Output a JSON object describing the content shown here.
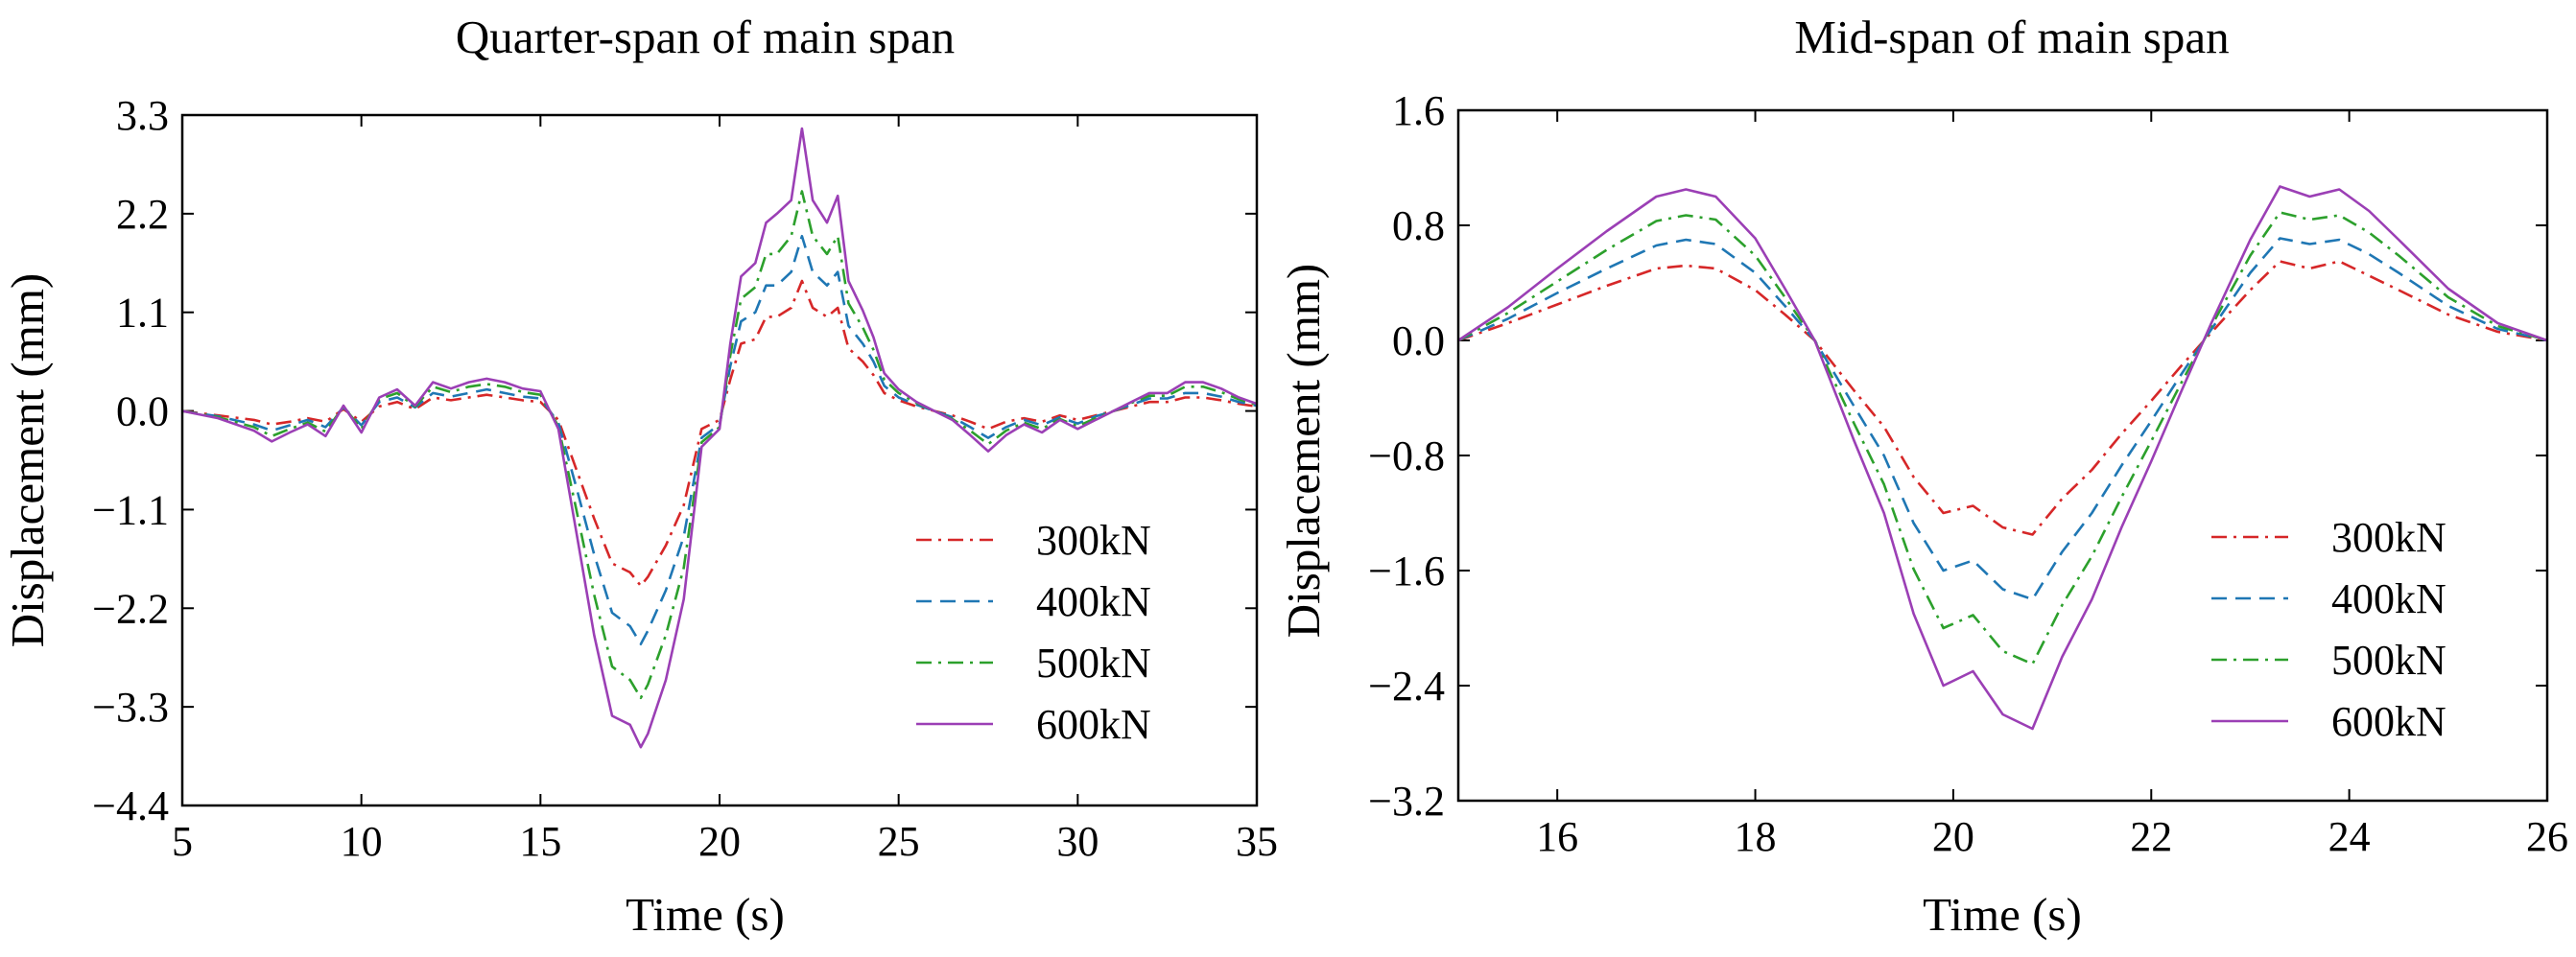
{
  "chart_data": [
    {
      "type": "line",
      "title": "Quarter-span of main span",
      "xlabel": "Time (s)",
      "ylabel": "Displacement (mm)",
      "xlim": [
        5,
        35
      ],
      "ylim": [
        -4.4,
        3.3
      ],
      "xticks": [
        5,
        10,
        15,
        20,
        25,
        30,
        35
      ],
      "xtick_labels": [
        "5",
        "10",
        "15",
        "20",
        "25",
        "30",
        "35"
      ],
      "yticks": [
        3.3,
        2.2,
        1.1,
        0.0,
        -1.1,
        -2.2,
        -3.3,
        -4.4
      ],
      "ytick_labels": [
        "3.3",
        "2.2",
        "1.1",
        "0.0",
        "−1.1",
        "−2.2",
        "−3.3",
        "−4.4"
      ],
      "legend_position": "lower-right",
      "grid": false,
      "series": [
        {
          "name": "300kN",
          "color": "#d62728",
          "dash": "dashdot",
          "x": [
            5,
            6,
            7,
            7.5,
            8,
            8.5,
            9,
            9.5,
            10,
            10.5,
            11,
            11.5,
            12,
            12.5,
            13,
            13.5,
            14,
            14.5,
            15,
            15.5,
            16,
            16.5,
            17,
            17.5,
            17.8,
            18,
            18.5,
            19,
            19.5,
            20,
            20.3,
            20.6,
            21,
            21.3,
            21.6,
            22,
            22.3,
            22.6,
            23,
            23.3,
            23.6,
            24,
            24.3,
            24.6,
            25,
            25.5,
            26,
            26.5,
            27,
            27.5,
            28,
            28.5,
            29,
            29.5,
            30,
            30.5,
            31,
            31.5,
            32,
            32.5,
            33,
            33.5,
            34,
            34.5,
            35
          ],
          "y": [
            0,
            -0.05,
            -0.1,
            -0.15,
            -0.12,
            -0.08,
            -0.12,
            0.02,
            -0.12,
            0.05,
            0.1,
            0.02,
            0.15,
            0.12,
            0.15,
            0.18,
            0.15,
            0.12,
            0.1,
            -0.1,
            -0.65,
            -1.2,
            -1.7,
            -1.8,
            -1.95,
            -1.85,
            -1.5,
            -1.05,
            -0.2,
            -0.1,
            0.35,
            0.75,
            0.8,
            1.05,
            1.05,
            1.15,
            1.45,
            1.15,
            1.05,
            1.15,
            0.7,
            0.55,
            0.4,
            0.2,
            0.12,
            0.05,
            0,
            -0.05,
            -0.12,
            -0.2,
            -0.12,
            -0.08,
            -0.12,
            -0.05,
            -0.1,
            -0.05,
            0,
            0.05,
            0.1,
            0.1,
            0.15,
            0.15,
            0.12,
            0.08,
            0.05
          ]
        },
        {
          "name": "400kN",
          "color": "#1f77b4",
          "dash": "dashed",
          "x": [
            5,
            6,
            7,
            7.5,
            8,
            8.5,
            9,
            9.5,
            10,
            10.5,
            11,
            11.5,
            12,
            12.5,
            13,
            13.5,
            14,
            14.5,
            15,
            15.5,
            16,
            16.5,
            17,
            17.5,
            17.8,
            18,
            18.5,
            19,
            19.5,
            20,
            20.3,
            20.6,
            21,
            21.3,
            21.6,
            22,
            22.3,
            22.6,
            23,
            23.3,
            23.6,
            24,
            24.3,
            24.6,
            25,
            25.5,
            26,
            26.5,
            27,
            27.5,
            28,
            28.5,
            29,
            29.5,
            30,
            30.5,
            31,
            31.5,
            32,
            32.5,
            33,
            33.5,
            34,
            34.5,
            35
          ],
          "y": [
            0,
            -0.06,
            -0.15,
            -0.22,
            -0.16,
            -0.1,
            -0.18,
            0.04,
            -0.16,
            0.1,
            0.15,
            0.04,
            0.2,
            0.16,
            0.2,
            0.24,
            0.2,
            0.16,
            0.14,
            -0.13,
            -0.85,
            -1.6,
            -2.25,
            -2.4,
            -2.6,
            -2.45,
            -2,
            -1.4,
            -0.3,
            -0.15,
            0.5,
            1.0,
            1.1,
            1.4,
            1.4,
            1.55,
            1.95,
            1.55,
            1.4,
            1.55,
            0.95,
            0.75,
            0.55,
            0.28,
            0.15,
            0.07,
            0,
            -0.07,
            -0.18,
            -0.3,
            -0.18,
            -0.1,
            -0.16,
            -0.07,
            -0.14,
            -0.06,
            0,
            0.07,
            0.14,
            0.14,
            0.2,
            0.2,
            0.16,
            0.1,
            0.06
          ]
        },
        {
          "name": "500kN",
          "color": "#2ca02c",
          "dash": "dashdot",
          "x": [
            5,
            6,
            7,
            7.5,
            8,
            8.5,
            9,
            9.5,
            10,
            10.5,
            11,
            11.5,
            12,
            12.5,
            13,
            13.5,
            14,
            14.5,
            15,
            15.5,
            16,
            16.5,
            17,
            17.5,
            17.8,
            18,
            18.5,
            19,
            19.5,
            20,
            20.3,
            20.6,
            21,
            21.3,
            21.6,
            22,
            22.3,
            22.6,
            23,
            23.3,
            23.6,
            24,
            24.3,
            24.6,
            25,
            25.5,
            26,
            26.5,
            27,
            27.5,
            28,
            28.5,
            29,
            29.5,
            30,
            30.5,
            31,
            31.5,
            32,
            32.5,
            33,
            33.5,
            34,
            34.5,
            35
          ],
          "y": [
            0,
            -0.07,
            -0.18,
            -0.28,
            -0.2,
            -0.13,
            -0.23,
            0.05,
            -0.2,
            0.13,
            0.2,
            0.05,
            0.27,
            0.21,
            0.27,
            0.3,
            0.27,
            0.21,
            0.18,
            -0.17,
            -1.1,
            -2.05,
            -2.85,
            -3.0,
            -3.2,
            -3.05,
            -2.5,
            -1.75,
            -0.35,
            -0.18,
            0.62,
            1.25,
            1.38,
            1.75,
            1.75,
            1.95,
            2.45,
            1.95,
            1.75,
            1.95,
            1.2,
            0.93,
            0.68,
            0.35,
            0.2,
            0.09,
            0,
            -0.09,
            -0.22,
            -0.37,
            -0.22,
            -0.13,
            -0.2,
            -0.09,
            -0.17,
            -0.08,
            0,
            0.09,
            0.17,
            0.17,
            0.27,
            0.27,
            0.21,
            0.13,
            0.07
          ]
        },
        {
          "name": "600kN",
          "color": "#9b3fb5",
          "dash": "solid",
          "x": [
            5,
            6,
            7,
            7.5,
            8,
            8.5,
            9,
            9.5,
            10,
            10.5,
            11,
            11.5,
            12,
            12.5,
            13,
            13.5,
            14,
            14.5,
            15,
            15.5,
            16,
            16.5,
            17,
            17.5,
            17.8,
            18,
            18.5,
            19,
            19.5,
            20,
            20.3,
            20.6,
            21,
            21.3,
            21.6,
            22,
            22.3,
            22.6,
            23,
            23.3,
            23.6,
            24,
            24.3,
            24.6,
            25,
            25.5,
            26,
            26.5,
            27,
            27.5,
            28,
            28.5,
            29,
            29.5,
            30,
            30.5,
            31,
            31.5,
            32,
            32.5,
            33,
            33.5,
            34,
            34.5,
            35
          ],
          "y": [
            0,
            -0.08,
            -0.22,
            -0.34,
            -0.24,
            -0.15,
            -0.28,
            0.06,
            -0.24,
            0.15,
            0.24,
            0.06,
            0.32,
            0.25,
            0.32,
            0.36,
            0.32,
            0.25,
            0.22,
            -0.2,
            -1.35,
            -2.5,
            -3.4,
            -3.5,
            -3.75,
            -3.6,
            -3.0,
            -2.1,
            -0.4,
            -0.2,
            0.75,
            1.5,
            1.65,
            2.1,
            2.2,
            2.35,
            3.15,
            2.35,
            2.1,
            2.4,
            1.45,
            1.12,
            0.82,
            0.42,
            0.24,
            0.1,
            0,
            -0.1,
            -0.27,
            -0.45,
            -0.27,
            -0.15,
            -0.24,
            -0.1,
            -0.2,
            -0.1,
            0,
            0.1,
            0.2,
            0.2,
            0.32,
            0.32,
            0.25,
            0.15,
            0.08
          ]
        }
      ]
    },
    {
      "type": "line",
      "title": "Mid-span of main span",
      "xlabel": "Time (s)",
      "ylabel": "Displacement (mm)",
      "xlim": [
        15,
        26
      ],
      "ylim": [
        -3.2,
        1.6
      ],
      "xticks": [
        16,
        18,
        20,
        22,
        24,
        26
      ],
      "xtick_labels": [
        "16",
        "18",
        "20",
        "22",
        "24",
        "26"
      ],
      "yticks": [
        1.6,
        0.8,
        0.0,
        -0.8,
        -1.6,
        -2.4,
        -3.2
      ],
      "ytick_labels": [
        "1.6",
        "0.8",
        "0.0",
        "−0.8",
        "−1.6",
        "−2.4",
        "−3.2"
      ],
      "legend_position": "lower-right",
      "grid": false,
      "series": [
        {
          "name": "300kN",
          "color": "#d62728",
          "dash": "dashdot",
          "x": [
            15,
            15.5,
            16,
            16.5,
            17,
            17.3,
            17.6,
            18,
            18.3,
            18.6,
            19,
            19.3,
            19.6,
            19.9,
            20.2,
            20.5,
            20.8,
            21.1,
            21.4,
            21.7,
            22,
            22.3,
            22.6,
            23,
            23.3,
            23.6,
            23.9,
            24.2,
            24.5,
            25,
            25.5,
            26
          ],
          "y": [
            0,
            0.12,
            0.25,
            0.38,
            0.5,
            0.52,
            0.5,
            0.35,
            0.18,
            0,
            -0.35,
            -0.6,
            -0.95,
            -1.2,
            -1.15,
            -1.3,
            -1.35,
            -1.1,
            -0.9,
            -0.65,
            -0.42,
            -0.18,
            0.05,
            0.35,
            0.55,
            0.5,
            0.55,
            0.45,
            0.35,
            0.18,
            0.06,
            0
          ]
        },
        {
          "name": "400kN",
          "color": "#1f77b4",
          "dash": "dashed",
          "x": [
            15,
            15.5,
            16,
            16.5,
            17,
            17.3,
            17.6,
            18,
            18.3,
            18.6,
            19,
            19.3,
            19.6,
            19.9,
            20.2,
            20.5,
            20.8,
            21.1,
            21.4,
            21.7,
            22,
            22.3,
            22.6,
            23,
            23.3,
            23.6,
            23.9,
            24.2,
            24.5,
            25,
            25.5,
            26
          ],
          "y": [
            0,
            0.15,
            0.33,
            0.5,
            0.66,
            0.7,
            0.67,
            0.47,
            0.24,
            0,
            -0.46,
            -0.8,
            -1.27,
            -1.6,
            -1.53,
            -1.73,
            -1.8,
            -1.47,
            -1.2,
            -0.87,
            -0.56,
            -0.24,
            0.07,
            0.47,
            0.71,
            0.67,
            0.7,
            0.6,
            0.47,
            0.24,
            0.08,
            0
          ]
        },
        {
          "name": "500kN",
          "color": "#2ca02c",
          "dash": "dashdot",
          "x": [
            15,
            15.5,
            16,
            16.5,
            17,
            17.3,
            17.6,
            18,
            18.3,
            18.6,
            19,
            19.3,
            19.6,
            19.9,
            20.2,
            20.5,
            20.8,
            21.1,
            21.4,
            21.7,
            22,
            22.3,
            22.6,
            23,
            23.3,
            23.6,
            23.9,
            24.2,
            24.5,
            25,
            25.5,
            26
          ],
          "y": [
            0,
            0.19,
            0.41,
            0.63,
            0.83,
            0.87,
            0.84,
            0.59,
            0.3,
            0,
            -0.58,
            -1.0,
            -1.59,
            -2.0,
            -1.91,
            -2.16,
            -2.25,
            -1.84,
            -1.5,
            -1.09,
            -0.7,
            -0.3,
            0.09,
            0.59,
            0.89,
            0.84,
            0.87,
            0.75,
            0.59,
            0.3,
            0.1,
            0
          ]
        },
        {
          "name": "600kN",
          "color": "#9b3fb5",
          "dash": "solid",
          "x": [
            15,
            15.5,
            16,
            16.5,
            17,
            17.3,
            17.6,
            18,
            18.3,
            18.6,
            19,
            19.3,
            19.6,
            19.9,
            20.2,
            20.5,
            20.8,
            21.1,
            21.4,
            21.7,
            22,
            22.3,
            22.6,
            23,
            23.3,
            23.6,
            23.9,
            24.2,
            24.5,
            25,
            25.5,
            26
          ],
          "y": [
            0,
            0.23,
            0.5,
            0.76,
            1.0,
            1.05,
            1.0,
            0.71,
            0.36,
            0,
            -0.7,
            -1.2,
            -1.9,
            -2.4,
            -2.3,
            -2.6,
            -2.7,
            -2.2,
            -1.8,
            -1.3,
            -0.84,
            -0.36,
            0.11,
            0.7,
            1.07,
            1.0,
            1.05,
            0.9,
            0.7,
            0.36,
            0.12,
            0
          ]
        }
      ]
    }
  ]
}
